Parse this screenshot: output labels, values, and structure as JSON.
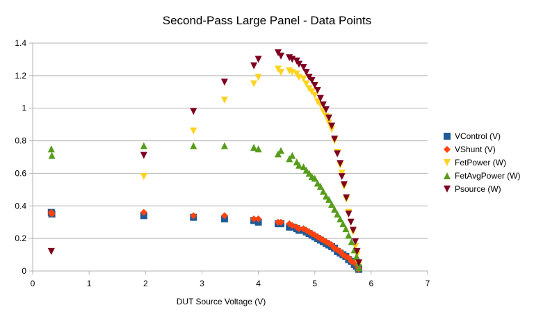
{
  "chart_data": {
    "type": "scatter",
    "title": "Second-Pass Large Panel - Data Points",
    "xlabel": "DUT Source Voltage (V)",
    "ylabel": "",
    "xlim": [
      0,
      7
    ],
    "ylim": [
      0,
      1.4
    ],
    "x_ticks": [
      "0",
      "1",
      "2",
      "3",
      "4",
      "5",
      "6",
      "7"
    ],
    "y_ticks": [
      "0",
      "0.2",
      "0.4",
      "0.6",
      "0.8",
      "1",
      "1.2",
      "1.4"
    ],
    "grid": "horizontal",
    "legend_position": "right",
    "series": [
      {
        "name": "VControl (V)",
        "color": "#1f5a96",
        "marker": "square",
        "points": [
          [
            0.33,
            0.36
          ],
          [
            0.34,
            0.35
          ],
          [
            1.97,
            0.34
          ],
          [
            2.85,
            0.33
          ],
          [
            3.4,
            0.32
          ],
          [
            3.92,
            0.31
          ],
          [
            4.0,
            0.3
          ],
          [
            4.35,
            0.29
          ],
          [
            4.4,
            0.29
          ],
          [
            4.55,
            0.27
          ],
          [
            4.6,
            0.27
          ],
          [
            4.68,
            0.26
          ],
          [
            4.72,
            0.25
          ],
          [
            4.8,
            0.25
          ],
          [
            4.85,
            0.24
          ],
          [
            4.9,
            0.23
          ],
          [
            4.95,
            0.22
          ],
          [
            5.0,
            0.21
          ],
          [
            5.05,
            0.2
          ],
          [
            5.1,
            0.19
          ],
          [
            5.15,
            0.18
          ],
          [
            5.2,
            0.17
          ],
          [
            5.25,
            0.16
          ],
          [
            5.3,
            0.15
          ],
          [
            5.35,
            0.14
          ],
          [
            5.4,
            0.12
          ],
          [
            5.45,
            0.11
          ],
          [
            5.5,
            0.1
          ],
          [
            5.55,
            0.09
          ],
          [
            5.6,
            0.07
          ],
          [
            5.65,
            0.06
          ],
          [
            5.7,
            0.04
          ],
          [
            5.74,
            0.03
          ],
          [
            5.77,
            0.02
          ],
          [
            5.78,
            0.01
          ]
        ]
      },
      {
        "name": "VShunt (V)",
        "color": "#ff420e",
        "marker": "diamond",
        "points": [
          [
            0.33,
            0.36
          ],
          [
            0.34,
            0.35
          ],
          [
            1.97,
            0.36
          ],
          [
            2.85,
            0.34
          ],
          [
            3.4,
            0.34
          ],
          [
            3.92,
            0.32
          ],
          [
            4.0,
            0.32
          ],
          [
            4.35,
            0.3
          ],
          [
            4.4,
            0.3
          ],
          [
            4.55,
            0.29
          ],
          [
            4.6,
            0.28
          ],
          [
            4.68,
            0.27
          ],
          [
            4.72,
            0.26
          ],
          [
            4.8,
            0.26
          ],
          [
            4.85,
            0.25
          ],
          [
            4.9,
            0.24
          ],
          [
            4.95,
            0.23
          ],
          [
            5.0,
            0.22
          ],
          [
            5.05,
            0.21
          ],
          [
            5.1,
            0.2
          ],
          [
            5.15,
            0.19
          ],
          [
            5.2,
            0.18
          ],
          [
            5.25,
            0.17
          ],
          [
            5.3,
            0.16
          ],
          [
            5.35,
            0.14
          ],
          [
            5.4,
            0.13
          ],
          [
            5.45,
            0.12
          ],
          [
            5.5,
            0.1
          ],
          [
            5.55,
            0.09
          ],
          [
            5.6,
            0.08
          ],
          [
            5.65,
            0.06
          ],
          [
            5.7,
            0.05
          ],
          [
            5.74,
            0.04
          ],
          [
            5.77,
            0.02
          ],
          [
            5.78,
            0.01
          ]
        ]
      },
      {
        "name": "FetPower (W)",
        "color": "#ffd320",
        "marker": "triangle-down",
        "points": [
          [
            0.33,
            0.12
          ],
          [
            1.97,
            0.58
          ],
          [
            2.85,
            0.86
          ],
          [
            3.4,
            1.05
          ],
          [
            3.92,
            1.15
          ],
          [
            4.0,
            1.19
          ],
          [
            4.35,
            1.24
          ],
          [
            4.4,
            1.22
          ],
          [
            4.55,
            1.23
          ],
          [
            4.6,
            1.22
          ],
          [
            4.68,
            1.21
          ],
          [
            4.72,
            1.19
          ],
          [
            4.8,
            1.18
          ],
          [
            4.85,
            1.15
          ],
          [
            4.9,
            1.12
          ],
          [
            4.95,
            1.1
          ],
          [
            5.0,
            1.08
          ],
          [
            5.05,
            1.04
          ],
          [
            5.1,
            1.02
          ],
          [
            5.15,
            0.98
          ],
          [
            5.2,
            0.95
          ],
          [
            5.25,
            0.91
          ],
          [
            5.3,
            0.87
          ],
          [
            5.35,
            0.8
          ],
          [
            5.4,
            0.73
          ],
          [
            5.45,
            0.65
          ],
          [
            5.48,
            0.6
          ],
          [
            5.52,
            0.52
          ],
          [
            5.56,
            0.44
          ],
          [
            5.6,
            0.36
          ],
          [
            5.64,
            0.3
          ],
          [
            5.68,
            0.24
          ],
          [
            5.72,
            0.15
          ],
          [
            5.75,
            0.1
          ],
          [
            5.78,
            0.04
          ]
        ]
      },
      {
        "name": "FetAvgPower (W)",
        "color": "#579d1c",
        "marker": "triangle-up",
        "points": [
          [
            0.33,
            0.75
          ],
          [
            0.34,
            0.71
          ],
          [
            1.97,
            0.77
          ],
          [
            2.85,
            0.77
          ],
          [
            3.4,
            0.77
          ],
          [
            3.92,
            0.76
          ],
          [
            4.0,
            0.75
          ],
          [
            4.35,
            0.72
          ],
          [
            4.4,
            0.74
          ],
          [
            4.55,
            0.69
          ],
          [
            4.6,
            0.71
          ],
          [
            4.68,
            0.67
          ],
          [
            4.72,
            0.65
          ],
          [
            4.8,
            0.64
          ],
          [
            4.85,
            0.62
          ],
          [
            4.9,
            0.6
          ],
          [
            4.95,
            0.58
          ],
          [
            5.0,
            0.57
          ],
          [
            5.05,
            0.54
          ],
          [
            5.1,
            0.52
          ],
          [
            5.15,
            0.49
          ],
          [
            5.2,
            0.46
          ],
          [
            5.25,
            0.44
          ],
          [
            5.3,
            0.41
          ],
          [
            5.35,
            0.38
          ],
          [
            5.4,
            0.35
          ],
          [
            5.45,
            0.32
          ],
          [
            5.5,
            0.29
          ],
          [
            5.55,
            0.26
          ],
          [
            5.6,
            0.22
          ],
          [
            5.65,
            0.18
          ],
          [
            5.7,
            0.13
          ],
          [
            5.74,
            0.09
          ],
          [
            5.77,
            0.05
          ],
          [
            5.78,
            0.02
          ]
        ]
      },
      {
        "name": "Psource (W)",
        "color": "#7e0021",
        "marker": "triangle-down",
        "points": [
          [
            0.33,
            0.12
          ],
          [
            1.97,
            0.71
          ],
          [
            2.85,
            0.98
          ],
          [
            3.4,
            1.16
          ],
          [
            3.92,
            1.26
          ],
          [
            4.0,
            1.3
          ],
          [
            4.35,
            1.34
          ],
          [
            4.4,
            1.32
          ],
          [
            4.55,
            1.31
          ],
          [
            4.6,
            1.3
          ],
          [
            4.68,
            1.29
          ],
          [
            4.72,
            1.27
          ],
          [
            4.8,
            1.25
          ],
          [
            4.85,
            1.22
          ],
          [
            4.9,
            1.19
          ],
          [
            4.95,
            1.17
          ],
          [
            5.0,
            1.14
          ],
          [
            5.05,
            1.11
          ],
          [
            5.1,
            1.06
          ],
          [
            5.15,
            1.02
          ],
          [
            5.2,
            0.99
          ],
          [
            5.25,
            0.94
          ],
          [
            5.3,
            0.89
          ],
          [
            5.35,
            0.81
          ],
          [
            5.4,
            0.72
          ],
          [
            5.45,
            0.66
          ],
          [
            5.48,
            0.58
          ],
          [
            5.52,
            0.53
          ],
          [
            5.56,
            0.45
          ],
          [
            5.6,
            0.35
          ],
          [
            5.64,
            0.3
          ],
          [
            5.68,
            0.25
          ],
          [
            5.72,
            0.18
          ],
          [
            5.75,
            0.12
          ],
          [
            5.78,
            0.05
          ]
        ]
      }
    ]
  }
}
